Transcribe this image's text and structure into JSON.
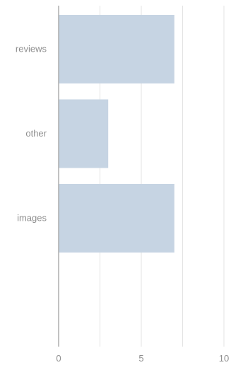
{
  "chart_data": {
    "type": "bar",
    "orientation": "horizontal",
    "categories": [
      "reviews",
      "other",
      "images"
    ],
    "values": [
      7,
      3,
      7
    ],
    "xlim": [
      0,
      10
    ],
    "x_ticks": [
      "0",
      "5",
      "10"
    ],
    "grid": true,
    "title": "",
    "xlabel": "",
    "ylabel": "",
    "colors": {
      "bar": "#c6d4e3",
      "grid": "#e3e3e3",
      "axis": "#9a9a9a",
      "text": "#8e8e8e"
    }
  }
}
